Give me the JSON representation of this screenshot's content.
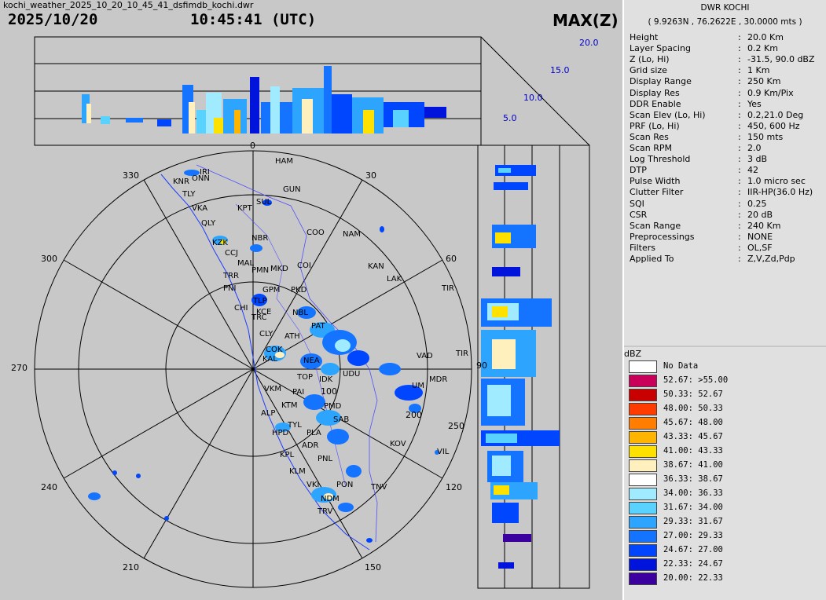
{
  "window": {
    "filename": "kochi_weather_2025_10_20_10_45_41_dsfimdb_kochi.dwr"
  },
  "header": {
    "date": "2025/10/20",
    "time": "10:45:41 (UTC)",
    "product": "MAX(Z)"
  },
  "station": {
    "name": "DWR KOCHI",
    "coords": "( 9.9263N , 76.2622E , 30.0000 mts )"
  },
  "params": [
    {
      "label": "Height",
      "value": "20.0 Km"
    },
    {
      "label": "Layer Spacing",
      "value": "0.2 Km"
    },
    {
      "label": "Z (Lo, Hi)",
      "value": "-31.5, 90.0 dBZ"
    },
    {
      "label": "Grid size",
      "value": "1 Km"
    },
    {
      "label": "Display Range",
      "value": "250 Km"
    },
    {
      "label": "Display Res",
      "value": "0.9 Km/Pix"
    },
    {
      "label": "DDR Enable",
      "value": "Yes"
    },
    {
      "label": "Scan Elev (Lo, Hi)",
      "value": "0.2,21.0 Deg"
    },
    {
      "label": "PRF (Lo, Hi)",
      "value": "450, 600 Hz"
    },
    {
      "label": "Scan Res",
      "value": "150 mts"
    },
    {
      "label": "Scan RPM",
      "value": "2.0"
    },
    {
      "label": "Log Threshold",
      "value": "3 dB"
    },
    {
      "label": "DTP",
      "value": "42"
    },
    {
      "label": "Pulse Width",
      "value": "1.0 micro sec"
    },
    {
      "label": "Clutter Filter",
      "value": "IIR-HP(36.0 Hz)"
    },
    {
      "label": "SQI",
      "value": "0.25"
    },
    {
      "label": "CSR",
      "value": "20 dB"
    },
    {
      "label": "Scan Range",
      "value": "240 Km"
    },
    {
      "label": "Preprocessings",
      "value": "NONE"
    },
    {
      "label": "Filters",
      "value": "OL,SF"
    },
    {
      "label": "Applied To",
      "value": "Z,V,Zd,Pdp"
    }
  ],
  "legend": {
    "title": "dBZ",
    "entries": [
      {
        "label": "No Data",
        "color": "#ffffff"
      },
      {
        "label": "52.67: >55.00",
        "color": "#c8005a"
      },
      {
        "label": "50.33: 52.67",
        "color": "#c80000"
      },
      {
        "label": "48.00: 50.33",
        "color": "#ff3c00"
      },
      {
        "label": "45.67: 48.00",
        "color": "#ff7d00"
      },
      {
        "label": "43.33: 45.67",
        "color": "#ffb400"
      },
      {
        "label": "41.00: 43.33",
        "color": "#ffe100"
      },
      {
        "label": "38.67: 41.00",
        "color": "#fff0be"
      },
      {
        "label": "36.33: 38.67",
        "color": "#ffffff"
      },
      {
        "label": "34.00: 36.33",
        "color": "#a0ebff"
      },
      {
        "label": "31.67: 34.00",
        "color": "#5ad2ff"
      },
      {
        "label": "29.33: 31.67",
        "color": "#2da5ff"
      },
      {
        "label": "27.00: 29.33",
        "color": "#1473ff"
      },
      {
        "label": "24.67: 27.00",
        "color": "#0046ff"
      },
      {
        "label": "22.33: 24.67",
        "color": "#0014dc"
      },
      {
        "label": "20.00: 22.33",
        "color": "#3c00a0"
      }
    ]
  },
  "ppi": {
    "azimuth_labels": [
      "30",
      "60",
      "90",
      "120",
      "150",
      "210",
      "240",
      "270",
      "300",
      "330"
    ],
    "range_labels": [
      "100",
      "200",
      "250"
    ],
    "north_label": "0"
  },
  "top_section": {
    "height_labels": [
      "20.0",
      "15.0",
      "10.0",
      "5.0"
    ]
  },
  "places": [
    "HAM",
    "GUN",
    "IRI",
    "ONN",
    "KNR",
    "TLY",
    "VKA",
    "KPT",
    "SUL",
    "QLY",
    "COO",
    "NAM",
    "NBR",
    "KZK",
    "CCJ",
    "MAL",
    "COI",
    "MKD",
    "PMN",
    "KAN",
    "LAK",
    "TRR",
    "PNI",
    "TIR",
    "GPM",
    "PKD",
    "TLP",
    "CHI",
    "NBL",
    "KCE",
    "PAT",
    "TRC",
    "CLY",
    "ATH",
    "COK",
    "VAD",
    "TIR",
    "KAL",
    "NEA",
    "UDU",
    "MDR",
    "TOP",
    "IDK",
    "VKM",
    "PAI",
    "UM",
    "KTM",
    "PMD",
    "ALP",
    "SAB",
    "HPD",
    "TYL",
    "PLA",
    "KOV",
    "ADR",
    "VIL",
    "KPL",
    "PNL",
    "KLM",
    "PON",
    "VKI",
    "TNV",
    "NDM",
    "TRV"
  ]
}
